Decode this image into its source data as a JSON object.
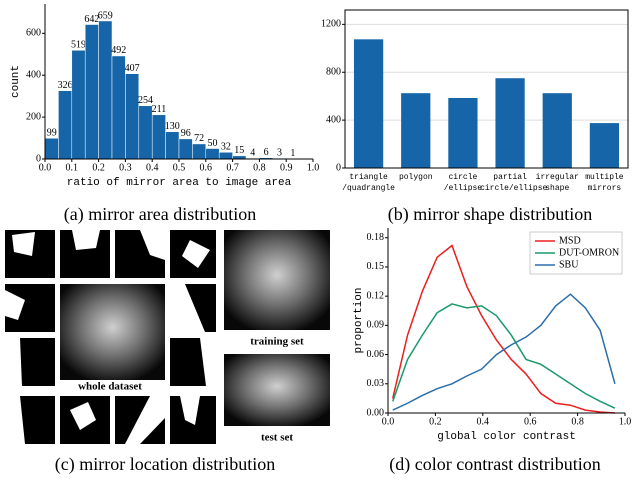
{
  "chart_data": [
    {
      "type": "histogram",
      "caption": "(a) mirror area distribution",
      "xlabel": "ratio of mirror area to image area",
      "ylabel": "count",
      "bins": [
        0,
        0.05,
        0.1,
        0.15,
        0.2,
        0.25,
        0.3,
        0.35,
        0.4,
        0.45,
        0.5,
        0.55,
        0.6,
        0.65,
        0.7,
        0.75,
        0.8,
        0.85,
        0.9,
        0.95
      ],
      "values": [
        99,
        326,
        519,
        642,
        659,
        492,
        407,
        254,
        211,
        130,
        96,
        72,
        50,
        32,
        15,
        4,
        6,
        3,
        1
      ],
      "color": "#1565a8",
      "xlim": [
        0,
        1
      ],
      "ylim": [
        0,
        740
      ],
      "xticks": [
        {
          "value": 0,
          "label": "0.0"
        },
        0.1,
        0.2,
        0.3,
        0.4,
        0.5,
        0.6,
        0.7,
        0.8,
        0.9,
        {
          "value": 1,
          "label": "1.0"
        }
      ],
      "yticks": [
        0,
        200,
        400,
        600
      ],
      "grid": false,
      "frame": false
    },
    {
      "type": "bar",
      "caption": "(b) mirror shape distribution",
      "categories": [
        "triangle\n/quadrangle",
        "polygon",
        "circle\n/ellipse",
        "partial\ncircle/ellipse",
        "irregular\nshape",
        "multiple\nmirrors"
      ],
      "values": [
        1075,
        625,
        585,
        750,
        625,
        375
      ],
      "color": "#1565a8",
      "ylim": [
        0,
        1320
      ],
      "yticks": [
        0,
        400,
        800,
        1200
      ],
      "grid": true,
      "frame": true
    },
    {
      "type": "line",
      "caption": "(d) color contrast distribution",
      "xlabel": "global color contrast",
      "ylabel": "proportion",
      "x": [
        0.02,
        0.0825,
        0.145,
        0.2075,
        0.27,
        0.3325,
        0.395,
        0.4575,
        0.52,
        0.5825,
        0.645,
        0.7075,
        0.77,
        0.8325,
        0.895,
        0.9575
      ],
      "series": [
        {
          "name": "MSD",
          "color": "#e8201e",
          "values": [
            0.015,
            0.08,
            0.125,
            0.16,
            0.172,
            0.13,
            0.1,
            0.075,
            0.055,
            0.04,
            0.02,
            0.01,
            0.008,
            0.003,
            0.001,
            0.0
          ]
        },
        {
          "name": "DUT-OMRON",
          "color": "#1a9a6a",
          "values": [
            0.012,
            0.055,
            0.08,
            0.103,
            0.112,
            0.108,
            0.11,
            0.1,
            0.08,
            0.055,
            0.05,
            0.04,
            0.03,
            0.02,
            0.012,
            0.005
          ]
        },
        {
          "name": "SBU",
          "color": "#2a6ea8",
          "values": [
            0.003,
            0.01,
            0.018,
            0.025,
            0.03,
            0.038,
            0.045,
            0.06,
            0.07,
            0.078,
            0.09,
            0.11,
            0.122,
            0.108,
            0.085,
            0.03
          ]
        }
      ],
      "xlim": [
        0,
        1
      ],
      "ylim": [
        0,
        0.19
      ],
      "xticks": [
        {
          "value": 0,
          "label": "0.0"
        },
        0.2,
        0.4,
        0.6,
        0.8,
        {
          "value": 1,
          "label": "1.0"
        }
      ],
      "yticks": [
        {
          "value": 0,
          "label": "0.00"
        },
        {
          "value": 0.03,
          "label": "0.03"
        },
        {
          "value": 0.06,
          "label": "0.06"
        },
        {
          "value": 0.09,
          "label": "0.09"
        },
        {
          "value": 0.12,
          "label": "0.12"
        },
        {
          "value": 0.15,
          "label": "0.15"
        },
        {
          "value": 0.18,
          "label": "0.18"
        }
      ],
      "grid": false,
      "frame": false,
      "legend": "upper right"
    }
  ],
  "panel_c": {
    "labels": [
      "whole dataset",
      "training set",
      "test set"
    ],
    "caption": "(c) mirror location distribution"
  }
}
